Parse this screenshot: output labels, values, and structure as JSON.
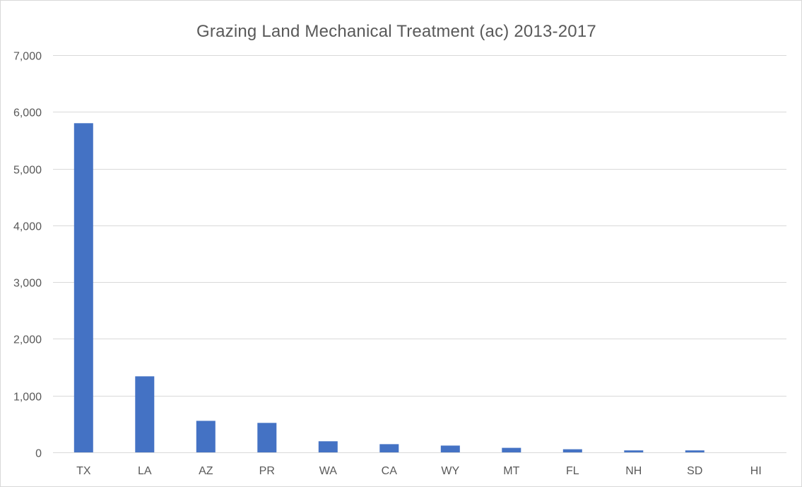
{
  "chart_data": {
    "type": "bar",
    "title": "Grazing Land Mechanical Treatment (ac) 2013-2017",
    "xlabel": "",
    "ylabel": "",
    "categories": [
      "TX",
      "LA",
      "AZ",
      "PR",
      "WA",
      "CA",
      "WY",
      "MT",
      "FL",
      "NH",
      "SD",
      "HI"
    ],
    "values": [
      5800,
      1340,
      555,
      520,
      195,
      145,
      120,
      80,
      55,
      35,
      35,
      0
    ],
    "ylim": [
      0,
      7000
    ],
    "yticks": [
      0,
      1000,
      2000,
      3000,
      4000,
      5000,
      6000,
      7000
    ],
    "ytick_labels": [
      "0",
      "1,000",
      "2,000",
      "3,000",
      "4,000",
      "5,000",
      "6,000",
      "7,000"
    ],
    "grid": true,
    "legend": "none",
    "bar_color": "#4472c4",
    "grid_color": "#d9d9d9"
  }
}
